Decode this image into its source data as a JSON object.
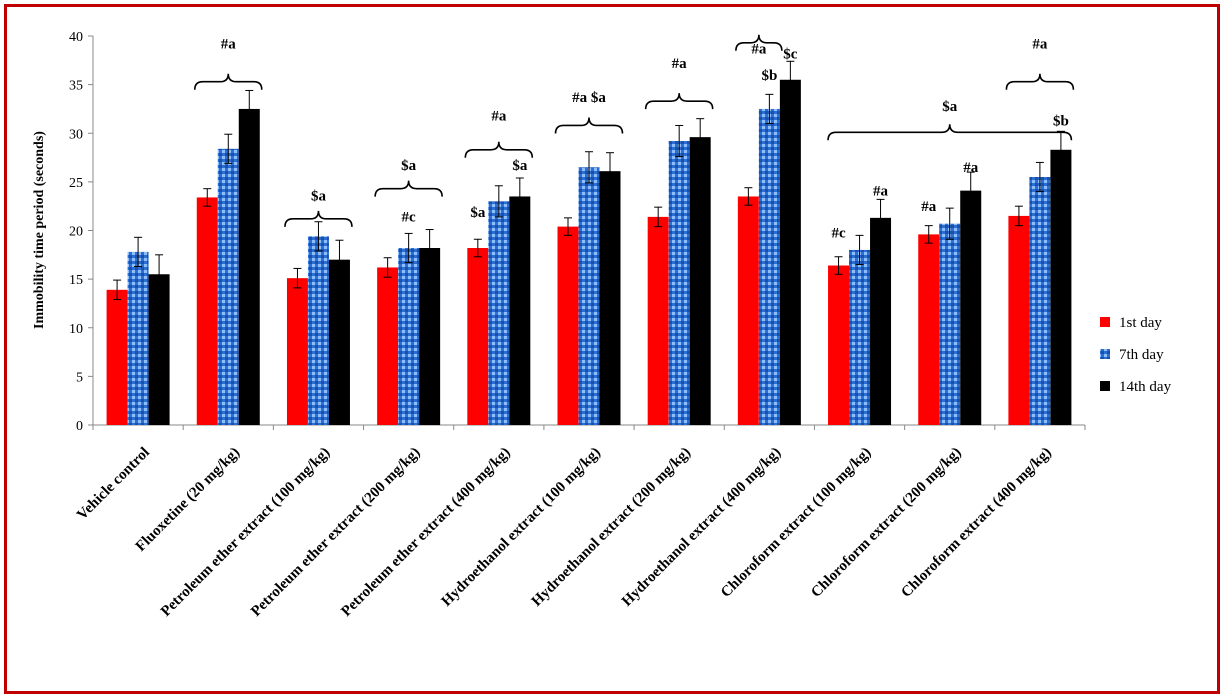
{
  "colors": {
    "s1": "#ff0000",
    "s2": "#2a6fd6",
    "s3": "#000000",
    "frame": "#c00000"
  },
  "chart_data": {
    "type": "bar",
    "title": "",
    "xlabel": "",
    "ylabel": "Immobility time period (seconds)",
    "ylim": [
      0,
      40
    ],
    "yticks": [
      0,
      5,
      10,
      15,
      20,
      25,
      30,
      35,
      40
    ],
    "legend_position": "right",
    "categories": [
      "Vehicle control",
      "Fluoxetine (20 mg/kg)",
      "Petroleum ether extract (100 mg/kg)",
      "Petroleum ether extract (200 mg/kg)",
      "Petroleum ether extract (400 mg/kg)",
      "Hydroethanol extract (100 mg/kg)",
      "Hydroethanol extract (200 mg/kg)",
      "Hydroethanol extract (400 mg/kg)",
      "Chloroform extract (100 mg/kg)",
      "Chloroform extract (200 mg/kg)",
      "Chloroform extract (400 mg/kg)"
    ],
    "series": [
      {
        "name": "1st day",
        "values": [
          13.9,
          23.4,
          15.1,
          16.2,
          18.2,
          20.4,
          21.4,
          23.5,
          16.4,
          19.6,
          21.5
        ],
        "errors": [
          1.0,
          0.9,
          1.0,
          1.0,
          0.9,
          0.9,
          1.0,
          0.9,
          0.9,
          0.9,
          1.0
        ]
      },
      {
        "name": "7th day",
        "values": [
          17.8,
          28.4,
          19.4,
          18.2,
          23.0,
          26.5,
          29.2,
          32.5,
          18.0,
          20.7,
          25.5
        ],
        "errors": [
          1.5,
          1.5,
          1.5,
          1.5,
          1.6,
          1.6,
          1.6,
          1.5,
          1.5,
          1.6,
          1.5
        ]
      },
      {
        "name": "14th day",
        "values": [
          15.5,
          32.5,
          17.0,
          18.2,
          23.5,
          26.1,
          29.6,
          35.5,
          21.3,
          24.1,
          28.3
        ],
        "errors": [
          2.0,
          1.9,
          2.0,
          1.9,
          1.9,
          1.9,
          1.9,
          1.9,
          1.9,
          1.9,
          1.9
        ]
      }
    ],
    "annotations": [
      {
        "text": "#a",
        "group": 1,
        "series": "bracket",
        "y": 38.7,
        "bracket": [
          0,
          2
        ],
        "bracket_y": 35.3
      },
      {
        "text": "$a",
        "group": 2,
        "series": "bracket",
        "y": 23.1,
        "bracket": [
          0,
          2
        ],
        "bracket_y": 21.2
      },
      {
        "text": "$a",
        "group": 3,
        "series": "bracket",
        "y": 26.2,
        "bracket": [
          0,
          2
        ],
        "bracket_y": 24.3
      },
      {
        "text": "#c",
        "group": 3,
        "series": 1,
        "y": 20.9
      },
      {
        "text": "#a",
        "group": 4,
        "series": "bracket",
        "y": 31.3,
        "bracket": [
          0,
          2
        ],
        "bracket_y": 28.3
      },
      {
        "text": "$a",
        "group": 4,
        "series": 0,
        "y": 21.4
      },
      {
        "text": "$a",
        "group": 4,
        "series": 2,
        "y": 26.2
      },
      {
        "text": "#a $a",
        "group": 5,
        "series": "bracket",
        "y": 33.2,
        "bracket": [
          0,
          2
        ],
        "bracket_y": 30.8
      },
      {
        "text": "#a",
        "group": 6,
        "series": "bracket",
        "y": 36.7,
        "bracket": [
          0,
          2
        ],
        "bracket_y": 33.3
      },
      {
        "text": "#a",
        "group": 7,
        "series": "bracket",
        "y": 38.2,
        "bracket": [
          0,
          1
        ],
        "bracket_y": 39.3
      },
      {
        "text": "$b",
        "group": 7,
        "series": 1,
        "y": 35.5
      },
      {
        "text": "$c",
        "group": 7,
        "series": 2,
        "y": 37.7
      },
      {
        "text": "$a",
        "group": 8,
        "series": "bracket",
        "y": 32.3,
        "bracket": [
          8,
          9,
          10
        ],
        "bracket_y": 30.1
      },
      {
        "text": "#c",
        "group": 8,
        "series": 0,
        "y": 19.3
      },
      {
        "text": "#a",
        "group": 8,
        "series": 2,
        "y": 23.6
      },
      {
        "text": "#a",
        "group": 9,
        "series": 0,
        "y": 22.0
      },
      {
        "text": "#a",
        "group": 9,
        "series": 2,
        "y": 26.0
      },
      {
        "text": "#a",
        "group": 10,
        "series": "bracket",
        "y": 38.7,
        "bracket": [
          0,
          2
        ],
        "bracket_y": 35.3
      },
      {
        "text": "$b",
        "group": 10,
        "series": 2,
        "y": 30.8
      }
    ]
  }
}
